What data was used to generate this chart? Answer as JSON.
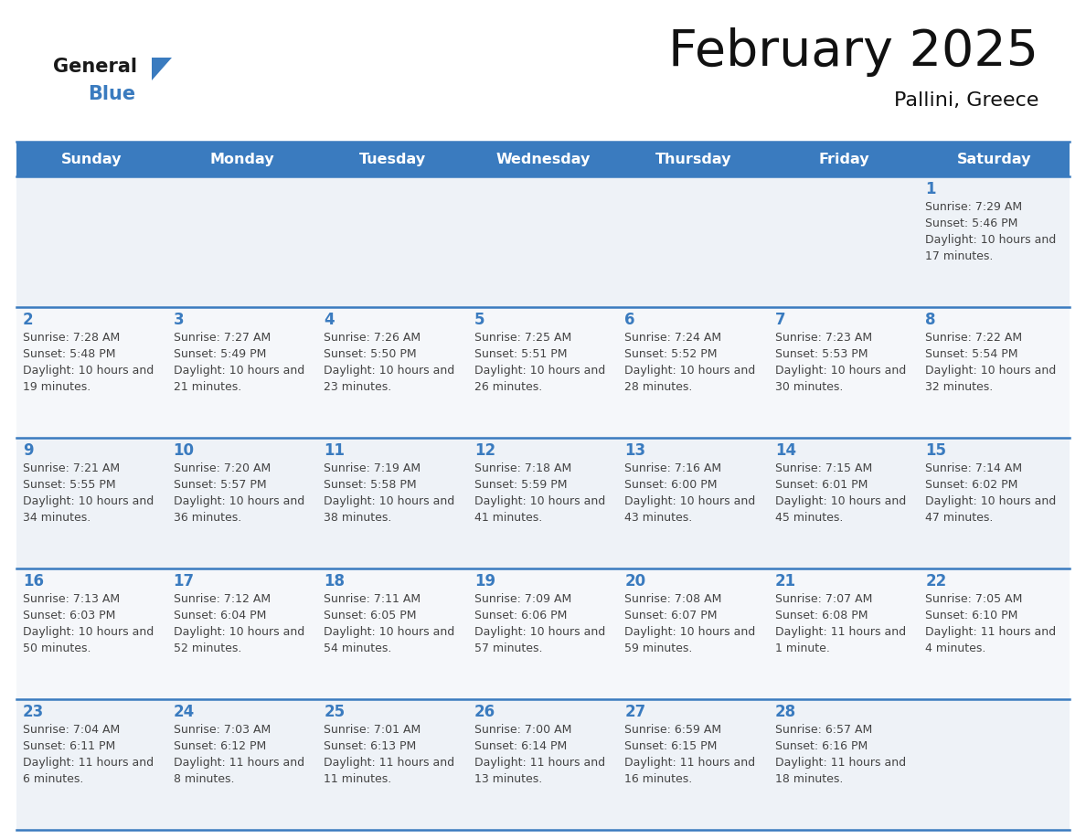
{
  "title": "February 2025",
  "subtitle": "Pallini, Greece",
  "days_of_week": [
    "Sunday",
    "Monday",
    "Tuesday",
    "Wednesday",
    "Thursday",
    "Friday",
    "Saturday"
  ],
  "header_bg": "#3a7bbf",
  "header_text": "#ffffff",
  "row_bg_alt": "#eef2f7",
  "row_bg_main": "#f5f7fa",
  "separator_color": "#3a7bbf",
  "day_number_color": "#3a7bbf",
  "info_text_color": "#444444",
  "logo_general_color": "#1a1a1a",
  "logo_blue_color": "#3a7bbf",
  "logo_triangle_color": "#3a7bbf",
  "calendar_data": [
    {
      "day": 1,
      "col": 6,
      "row": 0,
      "sunrise": "7:29 AM",
      "sunset": "5:46 PM",
      "daylight": "10 hours and 17 minutes"
    },
    {
      "day": 2,
      "col": 0,
      "row": 1,
      "sunrise": "7:28 AM",
      "sunset": "5:48 PM",
      "daylight": "10 hours and 19 minutes"
    },
    {
      "day": 3,
      "col": 1,
      "row": 1,
      "sunrise": "7:27 AM",
      "sunset": "5:49 PM",
      "daylight": "10 hours and 21 minutes"
    },
    {
      "day": 4,
      "col": 2,
      "row": 1,
      "sunrise": "7:26 AM",
      "sunset": "5:50 PM",
      "daylight": "10 hours and 23 minutes"
    },
    {
      "day": 5,
      "col": 3,
      "row": 1,
      "sunrise": "7:25 AM",
      "sunset": "5:51 PM",
      "daylight": "10 hours and 26 minutes"
    },
    {
      "day": 6,
      "col": 4,
      "row": 1,
      "sunrise": "7:24 AM",
      "sunset": "5:52 PM",
      "daylight": "10 hours and 28 minutes"
    },
    {
      "day": 7,
      "col": 5,
      "row": 1,
      "sunrise": "7:23 AM",
      "sunset": "5:53 PM",
      "daylight": "10 hours and 30 minutes"
    },
    {
      "day": 8,
      "col": 6,
      "row": 1,
      "sunrise": "7:22 AM",
      "sunset": "5:54 PM",
      "daylight": "10 hours and 32 minutes"
    },
    {
      "day": 9,
      "col": 0,
      "row": 2,
      "sunrise": "7:21 AM",
      "sunset": "5:55 PM",
      "daylight": "10 hours and 34 minutes"
    },
    {
      "day": 10,
      "col": 1,
      "row": 2,
      "sunrise": "7:20 AM",
      "sunset": "5:57 PM",
      "daylight": "10 hours and 36 minutes"
    },
    {
      "day": 11,
      "col": 2,
      "row": 2,
      "sunrise": "7:19 AM",
      "sunset": "5:58 PM",
      "daylight": "10 hours and 38 minutes"
    },
    {
      "day": 12,
      "col": 3,
      "row": 2,
      "sunrise": "7:18 AM",
      "sunset": "5:59 PM",
      "daylight": "10 hours and 41 minutes"
    },
    {
      "day": 13,
      "col": 4,
      "row": 2,
      "sunrise": "7:16 AM",
      "sunset": "6:00 PM",
      "daylight": "10 hours and 43 minutes"
    },
    {
      "day": 14,
      "col": 5,
      "row": 2,
      "sunrise": "7:15 AM",
      "sunset": "6:01 PM",
      "daylight": "10 hours and 45 minutes"
    },
    {
      "day": 15,
      "col": 6,
      "row": 2,
      "sunrise": "7:14 AM",
      "sunset": "6:02 PM",
      "daylight": "10 hours and 47 minutes"
    },
    {
      "day": 16,
      "col": 0,
      "row": 3,
      "sunrise": "7:13 AM",
      "sunset": "6:03 PM",
      "daylight": "10 hours and 50 minutes"
    },
    {
      "day": 17,
      "col": 1,
      "row": 3,
      "sunrise": "7:12 AM",
      "sunset": "6:04 PM",
      "daylight": "10 hours and 52 minutes"
    },
    {
      "day": 18,
      "col": 2,
      "row": 3,
      "sunrise": "7:11 AM",
      "sunset": "6:05 PM",
      "daylight": "10 hours and 54 minutes"
    },
    {
      "day": 19,
      "col": 3,
      "row": 3,
      "sunrise": "7:09 AM",
      "sunset": "6:06 PM",
      "daylight": "10 hours and 57 minutes"
    },
    {
      "day": 20,
      "col": 4,
      "row": 3,
      "sunrise": "7:08 AM",
      "sunset": "6:07 PM",
      "daylight": "10 hours and 59 minutes"
    },
    {
      "day": 21,
      "col": 5,
      "row": 3,
      "sunrise": "7:07 AM",
      "sunset": "6:08 PM",
      "daylight": "11 hours and 1 minute"
    },
    {
      "day": 22,
      "col": 6,
      "row": 3,
      "sunrise": "7:05 AM",
      "sunset": "6:10 PM",
      "daylight": "11 hours and 4 minutes"
    },
    {
      "day": 23,
      "col": 0,
      "row": 4,
      "sunrise": "7:04 AM",
      "sunset": "6:11 PM",
      "daylight": "11 hours and 6 minutes"
    },
    {
      "day": 24,
      "col": 1,
      "row": 4,
      "sunrise": "7:03 AM",
      "sunset": "6:12 PM",
      "daylight": "11 hours and 8 minutes"
    },
    {
      "day": 25,
      "col": 2,
      "row": 4,
      "sunrise": "7:01 AM",
      "sunset": "6:13 PM",
      "daylight": "11 hours and 11 minutes"
    },
    {
      "day": 26,
      "col": 3,
      "row": 4,
      "sunrise": "7:00 AM",
      "sunset": "6:14 PM",
      "daylight": "11 hours and 13 minutes"
    },
    {
      "day": 27,
      "col": 4,
      "row": 4,
      "sunrise": "6:59 AM",
      "sunset": "6:15 PM",
      "daylight": "11 hours and 16 minutes"
    },
    {
      "day": 28,
      "col": 5,
      "row": 4,
      "sunrise": "6:57 AM",
      "sunset": "6:16 PM",
      "daylight": "11 hours and 18 minutes"
    }
  ]
}
